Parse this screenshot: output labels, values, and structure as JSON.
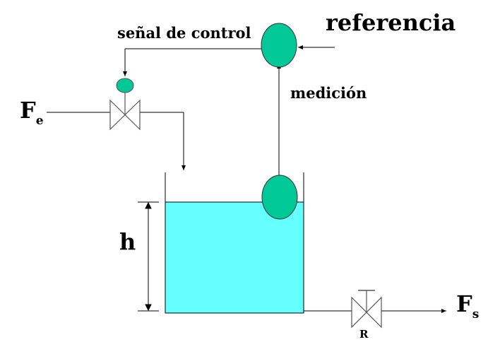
{
  "labels": {
    "reference": "referencia",
    "control_signal": "señal de control",
    "measurement": "medición",
    "inflow_main": "F",
    "inflow_sub": "e",
    "outflow_main": "F",
    "outflow_sub": "s",
    "level": "h",
    "resistance": "R"
  },
  "colors": {
    "controller": "#00C896",
    "water": "#66FFFF",
    "line": "#000000",
    "valve_outline": "#555555"
  }
}
